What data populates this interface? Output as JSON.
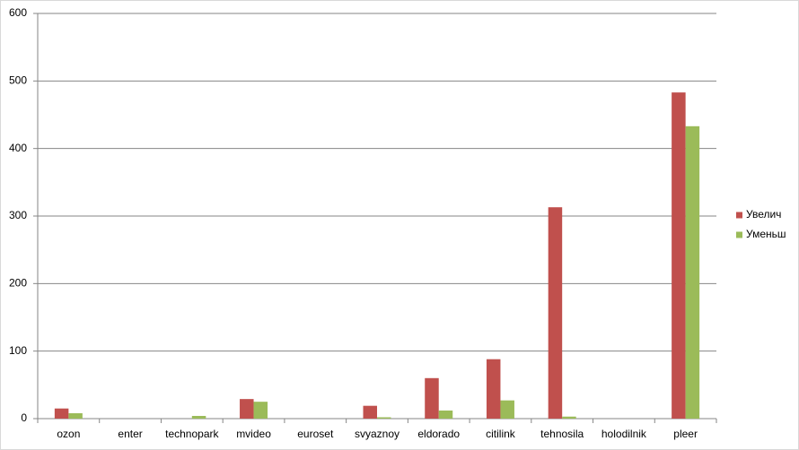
{
  "chart_data": {
    "type": "bar",
    "categories": [
      "ozon",
      "enter",
      "technopark",
      "mvideo",
      "euroset",
      "svyaznoy",
      "eldorado",
      "citilink",
      "tehnosila",
      "holodilnik",
      "pleer"
    ],
    "series": [
      {
        "name": "Увелич",
        "color": "#c0504d",
        "values": [
          15,
          0,
          0,
          29,
          0,
          19,
          60,
          88,
          313,
          0,
          483
        ]
      },
      {
        "name": "Уменьш",
        "color": "#9bbb59",
        "values": [
          8,
          0,
          4,
          25,
          0,
          2,
          12,
          27,
          3,
          0,
          433
        ]
      }
    ],
    "ylim": [
      0,
      600
    ],
    "yticks": [
      0,
      100,
      200,
      300,
      400,
      500,
      600
    ],
    "grid": true,
    "legend": "right"
  }
}
